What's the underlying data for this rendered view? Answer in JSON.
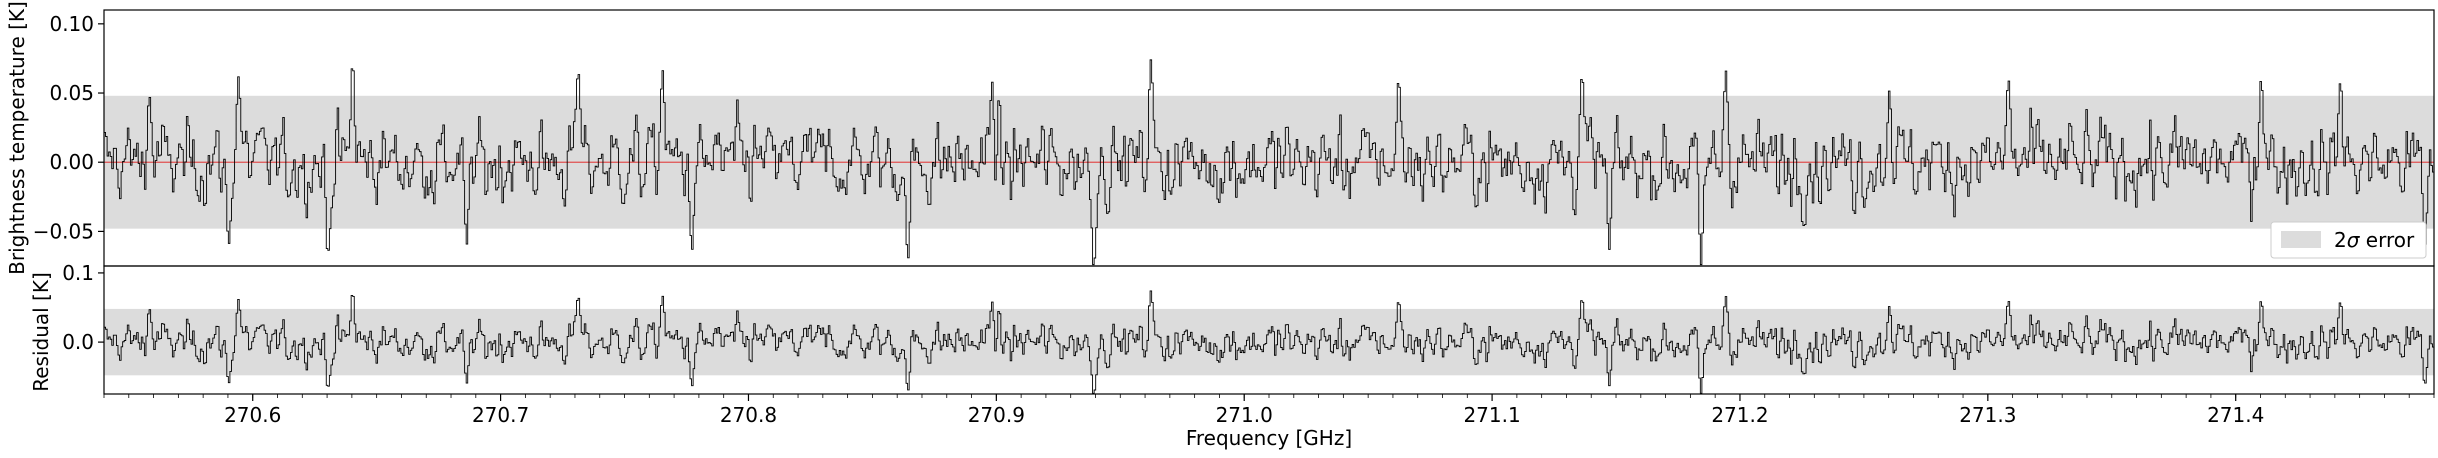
{
  "chart_data": [
    {
      "panel": "top",
      "type": "line",
      "xlabel": "",
      "ylabel": "Brightness temperature [K]",
      "xlim": [
        270.54,
        271.48
      ],
      "ylim": [
        -0.075,
        0.11
      ],
      "yticks": [
        -0.05,
        0.0,
        0.05,
        0.1
      ],
      "ytick_labels": [
        "−0.05",
        "0.00",
        "0.05",
        "0.10"
      ],
      "band": {
        "low": -0.048,
        "high": 0.048,
        "color": "#dcdcdc"
      },
      "zero_line": {
        "y": 0.0,
        "color": "#e05050"
      },
      "legend": {
        "position": "bottom-right",
        "label": "2σ error",
        "label_prefix": "2",
        "label_sigma": "σ",
        "label_suffix": " error"
      },
      "series": [
        {
          "line_color": "#000000",
          "noise_sigma": 0.026,
          "samples": 1500,
          "features": [
            {
              "x": 270.558,
              "y": 0.048
            },
            {
              "x": 270.59,
              "y": -0.06
            },
            {
              "x": 270.594,
              "y": 0.062
            },
            {
              "x": 270.63,
              "y": -0.068
            },
            {
              "x": 270.64,
              "y": 0.072
            },
            {
              "x": 270.686,
              "y": -0.06
            },
            {
              "x": 270.731,
              "y": 0.067
            },
            {
              "x": 270.765,
              "y": 0.067
            },
            {
              "x": 270.777,
              "y": -0.063
            },
            {
              "x": 270.864,
              "y": -0.071
            },
            {
              "x": 270.898,
              "y": 0.058
            },
            {
              "x": 270.939,
              "y": -0.076
            },
            {
              "x": 270.962,
              "y": 0.074
            },
            {
              "x": 271.062,
              "y": 0.06
            },
            {
              "x": 271.136,
              "y": 0.063
            },
            {
              "x": 271.147,
              "y": -0.063
            },
            {
              "x": 271.184,
              "y": -0.078
            },
            {
              "x": 271.194,
              "y": 0.066
            },
            {
              "x": 271.26,
              "y": 0.052
            },
            {
              "x": 271.308,
              "y": 0.06
            },
            {
              "x": 271.41,
              "y": 0.062
            },
            {
              "x": 271.442,
              "y": 0.059
            },
            {
              "x": 271.476,
              "y": -0.062
            }
          ]
        }
      ]
    },
    {
      "panel": "bottom",
      "type": "line",
      "xlabel": "Frequency [GHz]",
      "ylabel": "Residual [K]",
      "xlim": [
        270.54,
        271.48
      ],
      "ylim": [
        -0.075,
        0.11
      ],
      "yticks": [
        0.0,
        0.1
      ],
      "ytick_labels": [
        "0.0",
        "0.1"
      ],
      "xticks": [
        270.6,
        270.7,
        270.8,
        270.9,
        271.0,
        271.1,
        271.2,
        271.3,
        271.4
      ],
      "xtick_labels": [
        "270.6",
        "270.7",
        "270.8",
        "270.9",
        "271.0",
        "271.1",
        "271.2",
        "271.3",
        "271.4"
      ],
      "minor_xtick_step": 0.01,
      "band": {
        "low": -0.048,
        "high": 0.048,
        "color": "#dcdcdc"
      },
      "series": [
        {
          "line_color": "#000000",
          "mirror_of": "top"
        }
      ]
    }
  ]
}
